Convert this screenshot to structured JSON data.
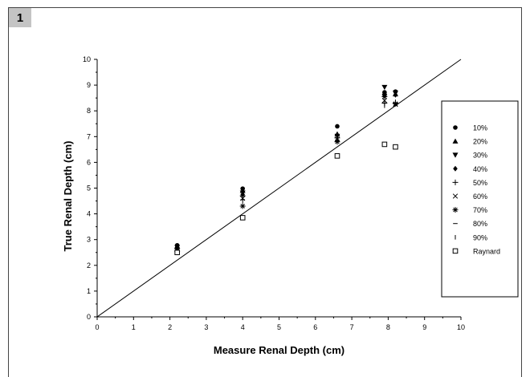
{
  "panel_number": "1",
  "colors": {
    "ink": "#000000",
    "frame": "#444444",
    "badge": "#c4c4c4"
  },
  "chart_data": {
    "type": "scatter",
    "xlabel": "Measure Renal Depth (cm)",
    "ylabel": "True Renal Depth (cm)",
    "xlim": [
      0,
      10
    ],
    "ylim": [
      0,
      10
    ],
    "x_ticks": [
      "0",
      "1",
      "2",
      "3",
      "4",
      "5",
      "6",
      "7",
      "8",
      "9",
      "10"
    ],
    "y_ticks": [
      "0",
      "1",
      "2",
      "3",
      "4",
      "5",
      "6",
      "7",
      "8",
      "9",
      "10"
    ],
    "grid": false,
    "legend_position": "right",
    "reference_line": {
      "x": [
        0,
        10
      ],
      "y": [
        0,
        10
      ]
    },
    "series": [
      {
        "name": "10%",
        "marker": "circle",
        "points": [
          [
            2.2,
            2.78
          ],
          [
            4.0,
            4.98
          ],
          [
            6.6,
            7.4
          ],
          [
            7.9,
            8.72
          ],
          [
            8.2,
            8.75
          ]
        ]
      },
      {
        "name": "20%",
        "marker": "triangle-up",
        "points": [
          [
            2.2,
            2.75
          ],
          [
            4.0,
            4.9
          ],
          [
            6.6,
            7.1
          ],
          [
            7.9,
            8.7
          ],
          [
            8.2,
            8.65
          ]
        ]
      },
      {
        "name": "30%",
        "marker": "triangle-down",
        "points": [
          [
            2.2,
            2.7
          ],
          [
            4.0,
            4.82
          ],
          [
            6.6,
            7.02
          ],
          [
            7.9,
            8.92
          ],
          [
            8.2,
            8.7
          ]
        ]
      },
      {
        "name": "40%",
        "marker": "diamond",
        "points": [
          [
            2.2,
            2.68
          ],
          [
            4.0,
            4.75
          ],
          [
            6.6,
            6.85
          ],
          [
            7.9,
            8.6
          ],
          [
            8.2,
            8.62
          ]
        ]
      },
      {
        "name": "50%",
        "marker": "plus",
        "points": [
          [
            2.2,
            2.65
          ],
          [
            4.0,
            4.7
          ],
          [
            6.6,
            6.95
          ],
          [
            7.9,
            8.3
          ],
          [
            8.2,
            8.3
          ]
        ]
      },
      {
        "name": "60%",
        "marker": "x",
        "points": [
          [
            2.2,
            2.6
          ],
          [
            4.0,
            4.6
          ],
          [
            6.6,
            6.9
          ],
          [
            7.9,
            8.4
          ],
          [
            8.2,
            8.25
          ]
        ]
      },
      {
        "name": "70%",
        "marker": "asterisk",
        "points": [
          [
            2.2,
            2.55
          ],
          [
            4.0,
            4.3
          ],
          [
            6.6,
            6.8
          ],
          [
            7.9,
            8.55
          ],
          [
            8.2,
            8.28
          ]
        ]
      },
      {
        "name": "80%",
        "marker": "dash",
        "points": [
          [
            2.2,
            2.55
          ],
          [
            4.0,
            4.55
          ],
          [
            6.6,
            6.82
          ],
          [
            7.9,
            8.3
          ],
          [
            8.2,
            8.3
          ]
        ]
      },
      {
        "name": "90%",
        "marker": "bar",
        "points": [
          [
            2.2,
            2.6
          ],
          [
            4.0,
            4.5
          ],
          [
            6.6,
            6.85
          ],
          [
            7.9,
            8.2
          ],
          [
            8.2,
            8.35
          ]
        ]
      },
      {
        "name": "Raynard",
        "marker": "square-open",
        "points": [
          [
            2.2,
            2.5
          ],
          [
            4.0,
            3.85
          ],
          [
            6.6,
            6.25
          ],
          [
            7.9,
            6.7
          ],
          [
            8.2,
            6.6
          ]
        ]
      }
    ]
  }
}
